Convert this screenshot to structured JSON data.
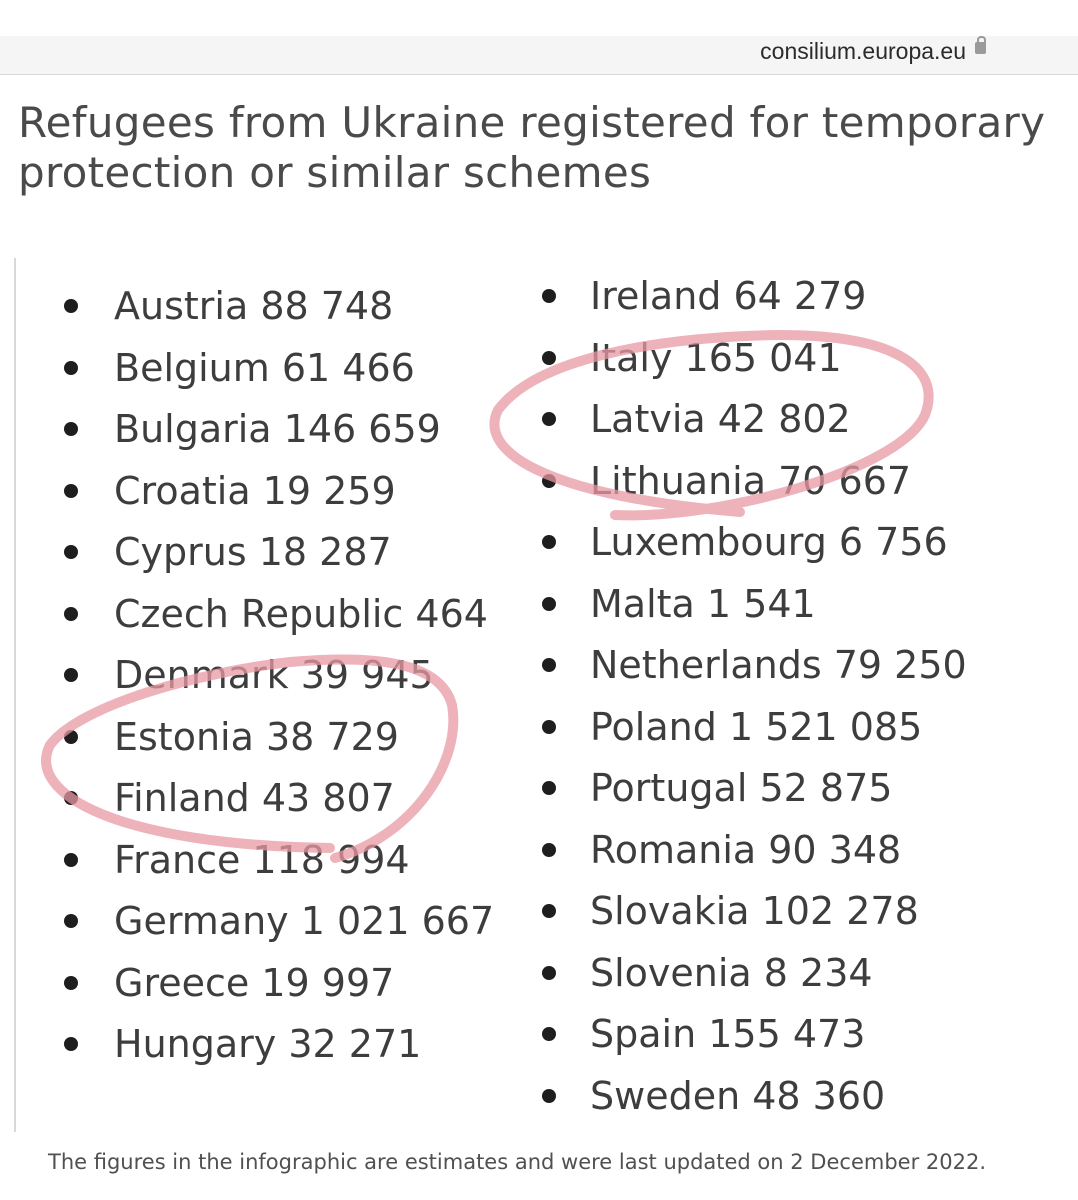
{
  "header": {
    "url": "consilium.europa.eu"
  },
  "title": "Refugees from Ukraine registered for temporary protection or similar schemes",
  "countries_left": [
    {
      "label": "Austria 88 748"
    },
    {
      "label": "Belgium 61 466"
    },
    {
      "label": "Bulgaria 146 659"
    },
    {
      "label": "Croatia 19 259"
    },
    {
      "label": "Cyprus 18 287"
    },
    {
      "label": "Czech Republic 464"
    },
    {
      "label": "Denmark 39 945"
    },
    {
      "label": "Estonia 38 729"
    },
    {
      "label": "Finland 43 807"
    },
    {
      "label": "France 118 994"
    },
    {
      "label": "Germany 1 021 667"
    },
    {
      "label": "Greece 19 997"
    },
    {
      "label": "Hungary 32 271"
    }
  ],
  "countries_right": [
    {
      "label": "Ireland 64 279"
    },
    {
      "label": "Italy 165 041"
    },
    {
      "label": "Latvia 42 802"
    },
    {
      "label": "Lithuania 70 667"
    },
    {
      "label": "Luxembourg 6 756"
    },
    {
      "label": "Malta 1 541"
    },
    {
      "label": "Netherlands 79 250"
    },
    {
      "label": "Poland 1 521 085"
    },
    {
      "label": "Portugal 52 875"
    },
    {
      "label": "Romania 90 348"
    },
    {
      "label": "Slovakia 102 278"
    },
    {
      "label": "Slovenia 8 234"
    },
    {
      "label": "Spain 155 473"
    },
    {
      "label": "Sweden 48 360"
    }
  ],
  "footnote": "The figures in the infographic are estimates and were last updated on 2 December 2022.",
  "colors": {
    "highlight": "#e89aa3",
    "bullet": "#1e1e1e",
    "text": "#3d3d3d"
  },
  "icons": {
    "url_lock": "lock-icon"
  }
}
